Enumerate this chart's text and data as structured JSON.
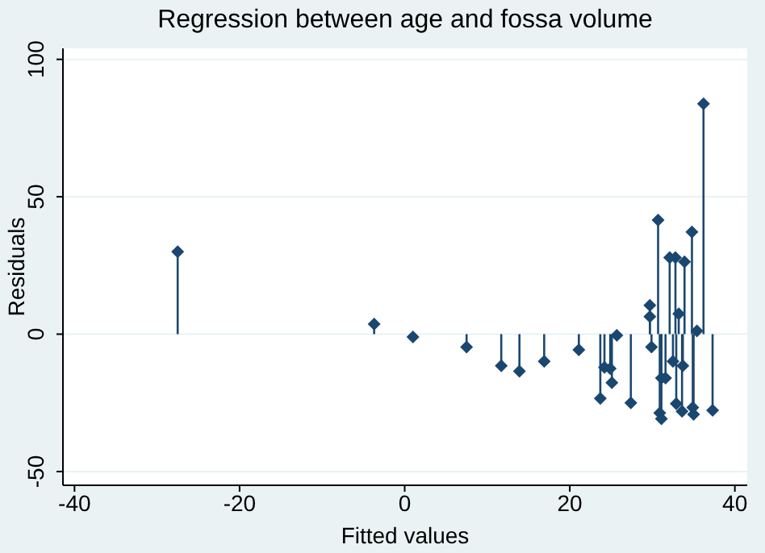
{
  "chart_data": {
    "type": "lollipop",
    "title": "Regression between age and fossa volume",
    "xlabel": "Fitted values",
    "ylabel": "Residuals",
    "xlim": [
      -41.4,
      41.5
    ],
    "xticks": [
      -40,
      -20,
      0,
      20,
      40
    ],
    "ylim": [
      -55,
      104
    ],
    "yticks": [
      -50,
      0,
      50,
      100
    ],
    "grid": "y",
    "marker": "diamond",
    "color": "#1a476f",
    "x": [
      -27.5,
      -3.7,
      1.0,
      7.5,
      11.7,
      13.9,
      16.9,
      21.1,
      23.7,
      24.2,
      24.9,
      25.1,
      25.7,
      27.4,
      29.7,
      29.7,
      29.9,
      30.7,
      30.9,
      31.1,
      31.1,
      31.6,
      32.1,
      32.5,
      32.8,
      32.9,
      33.2,
      33.6,
      33.7,
      33.9,
      34.8,
      34.9,
      35.0,
      35.4,
      36.2,
      37.3
    ],
    "values": [
      30.0,
      3.7,
      -1,
      -4.7,
      -11.5,
      -13.5,
      -9.9,
      -5.7,
      -23.4,
      -12.1,
      -12.5,
      -17.7,
      -0.4,
      -25,
      10.5,
      6.4,
      -4.7,
      41.5,
      -28.7,
      -30.8,
      -16,
      -16,
      27.9,
      -9.9,
      27.9,
      -25.3,
      7.4,
      -28.1,
      -11.5,
      26.3,
      37.2,
      -26.7,
      -29.2,
      1.2,
      83.8,
      -27.7
    ]
  }
}
